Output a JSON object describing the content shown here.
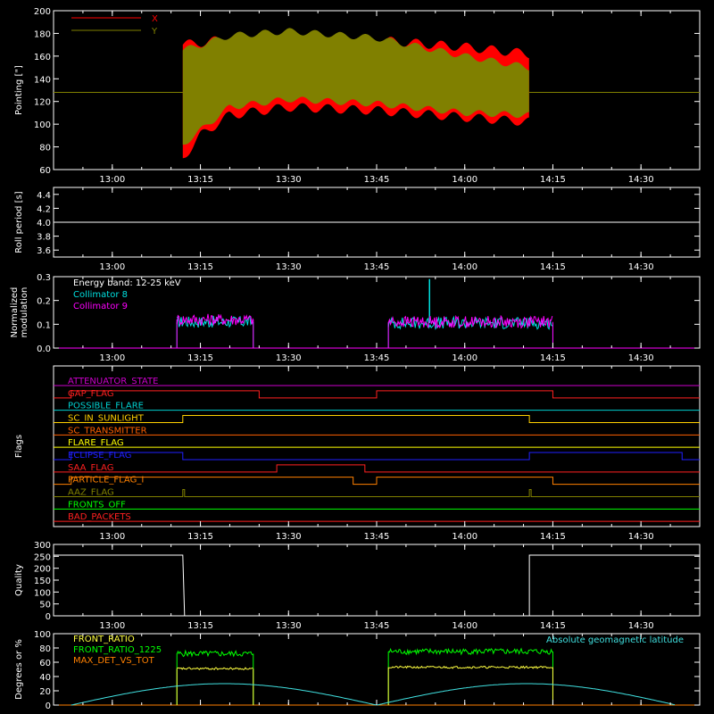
{
  "chart_data": [
    {
      "type": "line",
      "ylabel": "Pointing [\"]",
      "ylim": [
        60,
        200
      ],
      "yticks": [
        60,
        80,
        100,
        120,
        140,
        160,
        180,
        200
      ],
      "legend": "top-left",
      "series": [
        {
          "name": "X",
          "color": "#ff0000",
          "active_range": [
            "13:12",
            "14:11"
          ],
          "constant": 128,
          "upper": [
            [
              13.2,
              170
            ],
            [
              13.333,
              175
            ],
            [
              13.5,
              178
            ],
            [
              13.75,
              174
            ],
            [
              14.0,
              168
            ],
            [
              14.183,
              162
            ]
          ],
          "lower": [
            [
              13.2,
              70
            ],
            [
              13.25,
              90
            ],
            [
              13.333,
              108
            ],
            [
              13.5,
              115
            ],
            [
              13.75,
              112
            ],
            [
              14.0,
              106
            ],
            [
              14.183,
              102
            ]
          ]
        },
        {
          "name": "Y",
          "color": "#808000",
          "active_range": [
            "13:12",
            "14:11"
          ],
          "constant": 128,
          "upper": [
            [
              13.2,
              165
            ],
            [
              13.333,
              178
            ],
            [
              13.5,
              182
            ],
            [
              13.75,
              176
            ],
            [
              14.0,
              160
            ],
            [
              14.183,
              150
            ]
          ],
          "lower": [
            [
              13.2,
              82
            ],
            [
              13.333,
              115
            ],
            [
              13.5,
              122
            ],
            [
              13.75,
              118
            ],
            [
              14.0,
              110
            ],
            [
              14.183,
              108
            ]
          ]
        }
      ],
      "xticks": [
        "13:00",
        "13:15",
        "13:30",
        "13:45",
        "14:00",
        "14:15",
        "14:30"
      ],
      "xlim_hours": [
        12.833,
        14.667
      ]
    },
    {
      "type": "line",
      "ylabel": "Roll period [s]",
      "ylim": [
        3.5,
        4.5
      ],
      "yticks": [
        "3.6",
        "3.8",
        "4.0",
        "4.2",
        "4.4"
      ],
      "series": [
        {
          "name": "",
          "color": "#ffffff",
          "constant": 4.0
        }
      ],
      "xticks": [
        "13:00",
        "13:15",
        "13:30",
        "13:45",
        "14:00",
        "14:15",
        "14:30"
      ]
    },
    {
      "type": "line",
      "ylabel": "Normalized modulation",
      "ylim": [
        0,
        0.3
      ],
      "yticks": [
        "0.0",
        "0.1",
        "0.2",
        "0.3"
      ],
      "annotation": "Energy band: 12-25 keV",
      "series": [
        {
          "name": "Collimator 8",
          "color": "#00e0e0",
          "segments": [
            [
              "13:11",
              "13:24",
              0.11
            ],
            [
              "13:47",
              "14:15",
              0.105
            ]
          ],
          "spike": [
            "13:54",
            0.29
          ]
        },
        {
          "name": "Collimator 9",
          "color": "#ff00ff",
          "segments": [
            [
              "13:11",
              "13:24",
              0.12
            ],
            [
              "13:47",
              "14:15",
              0.11
            ]
          ],
          "spike": [
            "13:52",
            0.13
          ]
        }
      ],
      "xticks": [
        "13:00",
        "13:15",
        "13:30",
        "13:45",
        "14:00",
        "14:15",
        "14:30"
      ]
    },
    {
      "type": "line",
      "ylabel": "Flags",
      "flags": [
        {
          "name": "ATTENUATOR_STATE",
          "color": "#cc00cc",
          "high": []
        },
        {
          "name": "GAP_FLAG",
          "color": "#ff2020",
          "high": [
            [
              "12:53",
              "13:25"
            ],
            [
              "13:45",
              "14:15"
            ]
          ],
          "invert": true
        },
        {
          "name": "POSSIBLE_FLARE",
          "color": "#00d0d0",
          "high": []
        },
        {
          "name": "SC_IN_SUNLIGHT",
          "color": "#ffd000",
          "high": [
            [
              "13:12",
              "14:11"
            ]
          ]
        },
        {
          "name": "SC_TRANSMITTER",
          "color": "#ff6000",
          "high": []
        },
        {
          "name": "FLARE_FLAG",
          "color": "#ffff00",
          "high": []
        },
        {
          "name": "ECLIPSE_FLAG",
          "color": "#2020ff",
          "high": [
            [
              "12:53",
              "13:12"
            ],
            [
              "14:11",
              "14:37"
            ]
          ]
        },
        {
          "name": "SAA_FLAG",
          "color": "#ff2020",
          "high": [
            [
              "13:28",
              "13:43"
            ]
          ]
        },
        {
          "name": "PARTICLE_FLAG_I",
          "color": "#ff8000",
          "high": [
            [
              "12:53",
              "13:41"
            ],
            [
              "13:45",
              "14:15"
            ]
          ],
          "mid": [
            [
              "13:25",
              "13:41"
            ]
          ]
        },
        {
          "name": "AAZ_FLAG",
          "color": "#808000",
          "high": [
            [
              "13:12",
              "13:12"
            ],
            [
              "14:11",
              "14:11"
            ]
          ]
        },
        {
          "name": "FRONTS_OFF",
          "color": "#00ff00",
          "high": []
        },
        {
          "name": "BAD_PACKETS",
          "color": "#ff2020",
          "high": []
        }
      ],
      "xticks": [
        "13:00",
        "13:15",
        "13:30",
        "13:45",
        "14:00",
        "14:15",
        "14:30"
      ]
    },
    {
      "type": "line",
      "ylabel": "Quality",
      "ylim": [
        0,
        300
      ],
      "yticks": [
        "0",
        "50",
        "100",
        "150",
        "200",
        "250",
        "300"
      ],
      "series": [
        {
          "name": "",
          "color": "#ffffff",
          "segments": [
            [
              "12:53",
              "13:12",
              255
            ],
            [
              "14:11",
              "14:37",
              255
            ]
          ]
        }
      ],
      "xticks": [
        "13:00",
        "13:15",
        "13:30",
        "13:45",
        "14:00",
        "14:15",
        "14:30"
      ]
    },
    {
      "type": "line",
      "ylabel": "Degrees or %",
      "ylim": [
        0,
        100
      ],
      "yticks": [
        "0",
        "20",
        "40",
        "60",
        "80",
        "100"
      ],
      "series": [
        {
          "name": "FRONT_RATIO",
          "color": "#ffff40",
          "segments": [
            [
              "13:11",
              "13:24",
              51
            ],
            [
              "13:47",
              "14:15",
              53
            ]
          ]
        },
        {
          "name": "FRONT_RATIO_1225",
          "color": "#00ff00",
          "segments": [
            [
              "13:11",
              "13:24",
              72
            ],
            [
              "13:47",
              "14:15",
              75
            ]
          ]
        },
        {
          "name": "MAX_DET_VS_TOT",
          "color": "#ff8000",
          "constant": 0
        },
        {
          "name": "Absolute geomagnetic latitude",
          "color": "#40e0e0",
          "arches": [
            [
              "12:53",
              "13:45",
              30
            ],
            [
              "13:45",
              "14:36",
              30
            ]
          ]
        }
      ],
      "xticks": [
        "13:00",
        "13:15",
        "13:30",
        "13:45",
        "14:00",
        "14:15",
        "14:30"
      ]
    }
  ]
}
